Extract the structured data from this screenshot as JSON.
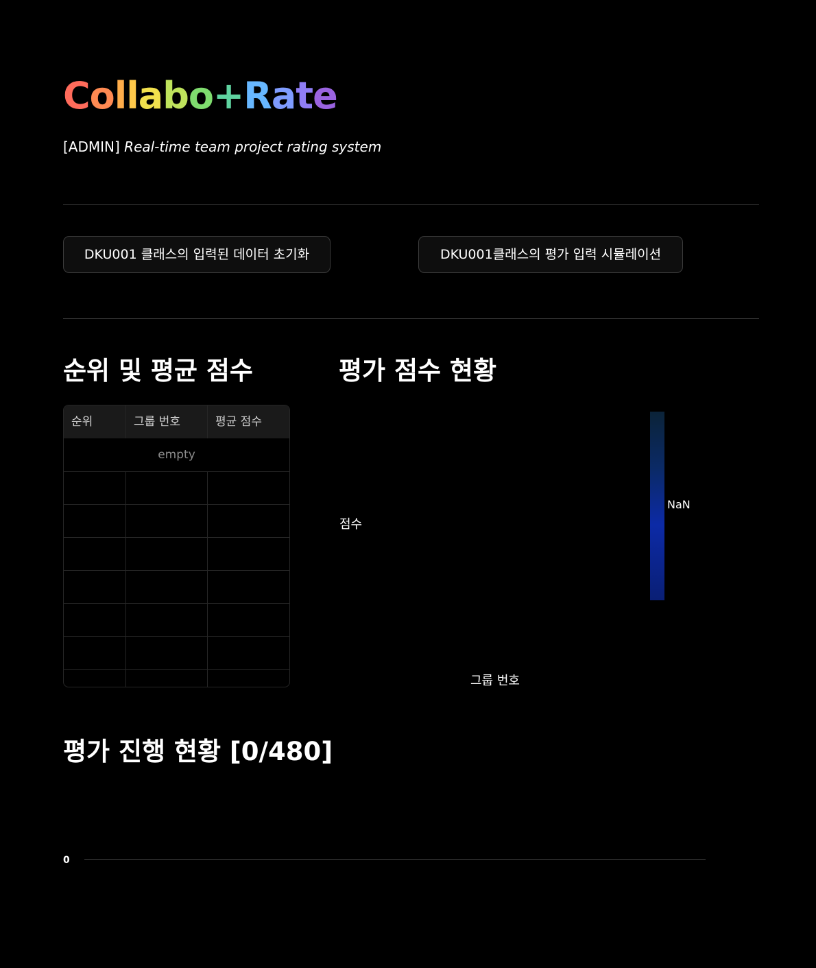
{
  "header": {
    "title_letters": [
      {
        "ch": "C",
        "color": "#ff6b5b"
      },
      {
        "ch": "o",
        "color": "#ff8a52"
      },
      {
        "ch": "l",
        "color": "#ffad4a"
      },
      {
        "ch": "l",
        "color": "#ffc94a"
      },
      {
        "ch": "a",
        "color": "#f2e14d"
      },
      {
        "ch": "b",
        "color": "#bfe35c"
      },
      {
        "ch": "o",
        "color": "#7fdc6e"
      },
      {
        "ch": "+",
        "color": "#5fd3a0"
      },
      {
        "ch": "R",
        "color": "#67b7ff"
      },
      {
        "ch": "a",
        "color": "#7f9cff"
      },
      {
        "ch": "t",
        "color": "#8f7df5"
      },
      {
        "ch": "e",
        "color": "#9a63e0"
      }
    ],
    "subtitle_prefix": "[ADMIN]",
    "subtitle_text": "Real-time team project rating system"
  },
  "actions": {
    "reset_label": "DKU001 클래스의 입력된 데이터 초기화",
    "simulate_label": "DKU001클래스의 평가 입력 시뮬레이션"
  },
  "ranking": {
    "heading": "순위 및 평균 점수",
    "columns": [
      "순위",
      "그룹 번호",
      "평균 점수"
    ],
    "empty_text": "empty"
  },
  "score_chart": {
    "heading": "평가 점수 현황",
    "chart_data": {
      "type": "heatmap",
      "title": "평가 점수 현황",
      "xlabel": "그룹 번호",
      "ylabel": "점수",
      "categories": [],
      "values": [],
      "colorbar_label": "NaN"
    }
  },
  "progress": {
    "heading": "평가 진행 현황 [0/480]",
    "current": 0,
    "total": 480,
    "axis_label": "0",
    "colors": {
      "track": "#3c3c3c",
      "fill": "#3c5cff"
    }
  }
}
